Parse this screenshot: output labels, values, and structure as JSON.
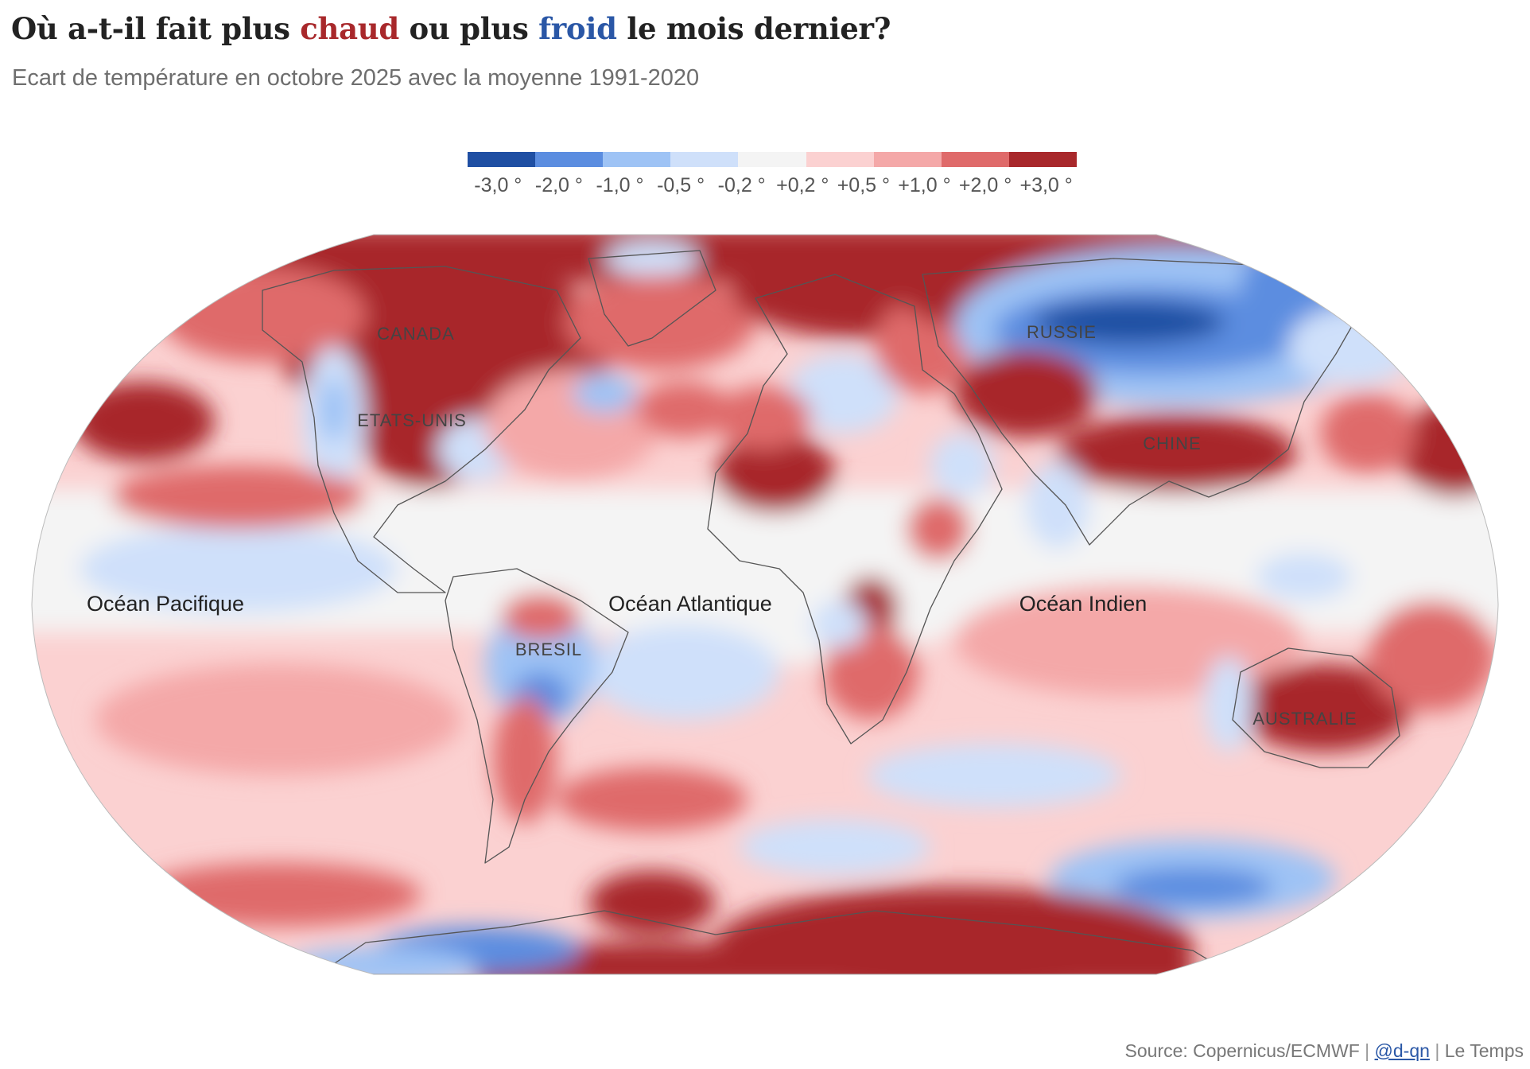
{
  "title": {
    "part1": "Où a-t-il fait plus ",
    "hot_word": "chaud",
    "part2": " ou plus ",
    "cold_word": "froid",
    "part3": " le mois dernier?"
  },
  "subtitle": "Ecart de température en octobre 2025 avec la moyenne 1991-2020",
  "legend": {
    "colors": [
      "#1f4fa3",
      "#5b8de0",
      "#9ec3f5",
      "#cfe0fa",
      "#f4f4f4",
      "#fbd1d1",
      "#f4a8a8",
      "#df6a6a",
      "#a8282b"
    ],
    "labels": [
      "-3,0 °",
      "-2,0 °",
      "-1,0 °",
      "-0,5 °",
      "-0,2 °",
      "+0,2 °",
      "+0,5 °",
      "+1,0 °",
      "+2,0 °",
      "+3,0 °"
    ]
  },
  "map": {
    "labels": {
      "canada": "CANADA",
      "etats_unis": "ETATS-UNIS",
      "russie": "RUSSIE",
      "chine": "CHINE",
      "bresil": "BRESIL",
      "australie": "AUSTRALIE",
      "pacifique": "Océan Pacifique",
      "atlantique": "Océan Atlantique",
      "indien": "Océan Indien"
    },
    "colors": {
      "hot": "#a8282b",
      "warm": "#df6a6a",
      "mild": "#f4a8a8",
      "slight": "#fbd1d1",
      "neutral": "#f4f4f4",
      "cool": "#cfe0fa",
      "cold": "#9ec3f5",
      "colder": "#5b8de0",
      "coldest": "#1f4fa3",
      "border": "#555555"
    }
  },
  "footer": {
    "source": "Source: Copernicus/ECMWF",
    "separator": "|",
    "handle": "@d-qn",
    "publisher": "Le Temps"
  }
}
